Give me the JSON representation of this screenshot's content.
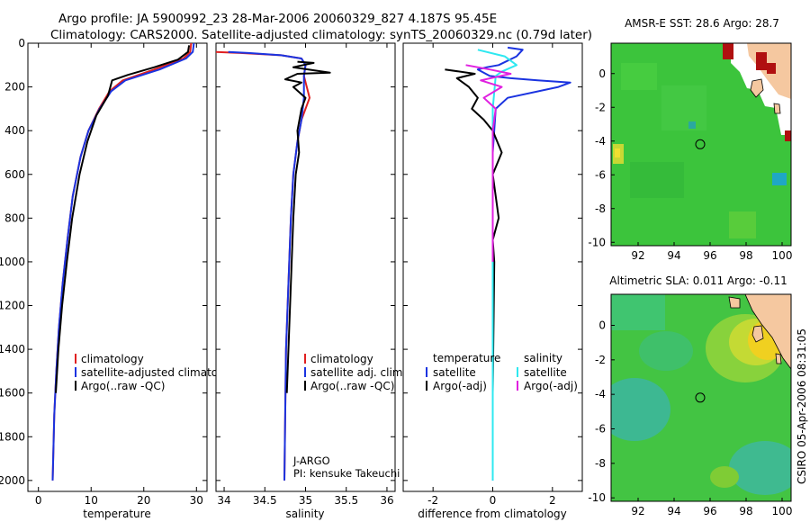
{
  "title_line1": "Argo profile: JA 5900992_23 28-Mar-2006 20060329_827 4.187S 95.45E",
  "title_line2": "Climatology: CARS2000. Satellite-adjusted climatology: synTS_20060329.nc (0.79d later)",
  "side_label": "CSIRO 05-Apr-2006 08:31:05",
  "colors": {
    "climatology": "#e02020",
    "satellite": "#1a33e0",
    "argo": "#000000",
    "sat_sal": "#2ee8f0",
    "argo_sal": "#e020e0"
  },
  "chart_data": [
    {
      "type": "line",
      "id": "temperature",
      "xlabel": "temperature",
      "xlim": [
        -2,
        32
      ],
      "ylim": [
        0,
        2050
      ],
      "y_reversed": true,
      "x_ticks": [
        {
          "v": 0,
          "label": "0"
        },
        {
          "v": 10,
          "label": "10"
        },
        {
          "v": 20,
          "label": "20"
        },
        {
          "v": 30,
          "label": "30"
        }
      ],
      "y_ticks": [
        {
          "v": 0,
          "label": "0"
        },
        {
          "v": 200,
          "label": "200"
        },
        {
          "v": 400,
          "label": "400"
        },
        {
          "v": 600,
          "label": "600"
        },
        {
          "v": 800,
          "label": "800"
        },
        {
          "v": 1000,
          "label": "1000"
        },
        {
          "v": 1200,
          "label": "1200"
        },
        {
          "v": 1400,
          "label": "1400"
        },
        {
          "v": 1600,
          "label": "1600"
        },
        {
          "v": 1800,
          "label": "1800"
        },
        {
          "v": 2000,
          "label": "2000"
        }
      ],
      "legend": [
        {
          "label": "climatology",
          "color": "#e02020"
        },
        {
          "label": "satellite-adjusted climatology",
          "color": "#1a33e0"
        },
        {
          "label": "Argo(..raw -QC)",
          "color": "#000000"
        }
      ],
      "series": [
        {
          "name": "climatology",
          "color": "#e02020",
          "x": [
            29.0,
            28.8,
            27.5,
            22.0,
            16.0,
            13.5,
            11.5,
            9.5,
            8.0,
            6.5,
            5.5,
            4.6,
            3.9,
            3.4,
            3.0,
            2.7
          ],
          "y": [
            0,
            40,
            70,
            120,
            170,
            220,
            300,
            400,
            520,
            700,
            900,
            1100,
            1300,
            1500,
            1700,
            2000
          ]
        },
        {
          "name": "satellite-adjusted climatology",
          "color": "#1a33e0",
          "x": [
            29.5,
            29.3,
            28.0,
            23.0,
            16.5,
            13.8,
            11.6,
            9.5,
            8.0,
            6.5,
            5.5,
            4.6,
            3.9,
            3.4,
            3.0,
            2.7
          ],
          "y": [
            0,
            40,
            70,
            120,
            170,
            220,
            300,
            400,
            520,
            700,
            900,
            1100,
            1300,
            1500,
            1700,
            2000
          ]
        },
        {
          "name": "Argo(..raw -QC)",
          "color": "#000000",
          "x": [
            28.6,
            28.4,
            26.5,
            22.0,
            17.0,
            14.0,
            13.2,
            11.0,
            9.3,
            7.8,
            6.4,
            5.4,
            4.5,
            3.8,
            3.3
          ],
          "y": [
            10,
            40,
            75,
            110,
            145,
            170,
            240,
            330,
            450,
            600,
            800,
            1000,
            1200,
            1400,
            1600
          ]
        }
      ]
    },
    {
      "type": "line",
      "id": "salinity",
      "xlabel": "salinity",
      "xlim": [
        33.9,
        36.1
      ],
      "ylim": [
        0,
        2050
      ],
      "y_reversed": true,
      "x_ticks": [
        {
          "v": 34,
          "label": "34"
        },
        {
          "v": 34.5,
          "label": "34.5"
        },
        {
          "v": 35,
          "label": "35"
        },
        {
          "v": 35.5,
          "label": "35.5"
        },
        {
          "v": 36,
          "label": "36"
        }
      ],
      "legend": [
        {
          "label": "climatology",
          "color": "#e02020"
        },
        {
          "label": "satellite adj. clim.",
          "color": "#1a33e0"
        },
        {
          "label": "Argo(..raw -QC)",
          "color": "#000000"
        }
      ],
      "annotation": [
        "J-ARGO",
        "PI: kensuke Takeuchi"
      ],
      "series": [
        {
          "name": "climatology",
          "color": "#e02020",
          "x": [
            33.9,
            34.2,
            34.7,
            34.95,
            35.0,
            34.98,
            35.05,
            34.95,
            34.9,
            34.85,
            34.82,
            34.8,
            34.78,
            34.76,
            34.75,
            34.74
          ],
          "y": [
            40,
            45,
            55,
            70,
            100,
            150,
            250,
            350,
            450,
            600,
            800,
            1000,
            1200,
            1400,
            1700,
            2000
          ]
        },
        {
          "name": "satellite adj. clim.",
          "color": "#1a33e0",
          "x": [
            34.05,
            34.3,
            34.7,
            34.95,
            35.0,
            34.98,
            34.98,
            34.95,
            34.9,
            34.85,
            34.82,
            34.8,
            34.78,
            34.76,
            34.75,
            34.74
          ],
          "y": [
            40,
            45,
            55,
            70,
            100,
            150,
            250,
            350,
            450,
            600,
            800,
            1000,
            1200,
            1400,
            1700,
            2000
          ]
        },
        {
          "name": "Argo(..raw -QC)",
          "color": "#000000",
          "x": [
            34.9,
            35.1,
            34.85,
            35.3,
            34.9,
            34.75,
            34.95,
            34.85,
            35.0,
            34.95,
            34.9,
            34.92,
            34.88,
            34.85,
            34.83,
            34.81,
            34.79,
            34.77
          ],
          "y": [
            85,
            90,
            110,
            135,
            140,
            165,
            180,
            200,
            250,
            300,
            400,
            500,
            600,
            800,
            1000,
            1200,
            1400,
            1600
          ]
        }
      ]
    },
    {
      "type": "line",
      "id": "difference",
      "xlabel": "difference from climatology",
      "xlim": [
        -3,
        3
      ],
      "ylim": [
        0,
        2050
      ],
      "y_reversed": true,
      "x_ticks": [
        {
          "v": -2,
          "label": "-2"
        },
        {
          "v": 0,
          "label": "0"
        },
        {
          "v": 2,
          "label": "2"
        }
      ],
      "legend_left": {
        "heading": "temperature",
        "items": [
          {
            "label": "satellite",
            "color": "#1a33e0"
          },
          {
            "label": "Argo(-adj)",
            "color": "#000000"
          }
        ]
      },
      "legend_right": {
        "heading": "salinity",
        "items": [
          {
            "label": "satellite",
            "color": "#2ee8f0"
          },
          {
            "label": "Argo(-adj)",
            "color": "#e020e0"
          }
        ]
      },
      "series": [
        {
          "name": "temperature satellite",
          "color": "#1a33e0",
          "x": [
            0.5,
            1.0,
            0.8,
            0.2,
            -0.2,
            -0.5,
            -0.1,
            0.6,
            1.5,
            2.6,
            2.2,
            0.5,
            0.1,
            0.0,
            0.0
          ],
          "y": [
            20,
            30,
            60,
            100,
            110,
            120,
            150,
            160,
            170,
            180,
            200,
            250,
            300,
            500,
            2000
          ]
        },
        {
          "name": "temperature Argo(-adj)",
          "color": "#000000",
          "x": [
            -1.6,
            -0.6,
            -1.2,
            -0.8,
            -0.5,
            -0.7,
            -0.3,
            0.0,
            0.3,
            0.0,
            0.2,
            0.0,
            0.05,
            0.0
          ],
          "y": [
            120,
            140,
            160,
            200,
            250,
            300,
            350,
            400,
            500,
            600,
            800,
            900,
            1000,
            1600
          ]
        },
        {
          "name": "salinity satellite",
          "color": "#2ee8f0",
          "x": [
            -0.5,
            0.4,
            0.8,
            0.3,
            0.1,
            0.0,
            0.0,
            0.0
          ],
          "y": [
            30,
            60,
            100,
            130,
            150,
            300,
            500,
            2000
          ]
        },
        {
          "name": "salinity Argo(-adj)",
          "color": "#e020e0",
          "x": [
            -0.9,
            -0.1,
            0.6,
            -0.4,
            0.3,
            -0.3,
            0.1,
            0.0,
            0.0
          ],
          "y": [
            100,
            120,
            140,
            170,
            200,
            250,
            300,
            400,
            1000
          ]
        }
      ]
    },
    {
      "type": "heatmap",
      "id": "sst_map",
      "title": "AMSR-E SST: 28.6  Argo: 28.7",
      "xlim": [
        90.5,
        100.5
      ],
      "ylim": [
        -10.2,
        1.8
      ],
      "x_ticks": [
        {
          "v": 92,
          "label": "92"
        },
        {
          "v": 94,
          "label": "94"
        },
        {
          "v": 96,
          "label": "96"
        },
        {
          "v": 98,
          "label": "98"
        },
        {
          "v": 100,
          "label": "100"
        }
      ],
      "y_ticks": [
        {
          "v": 0,
          "label": "0"
        },
        {
          "v": -2,
          "label": "-2"
        },
        {
          "v": -4,
          "label": "-4"
        },
        {
          "v": -6,
          "label": "-6"
        },
        {
          "v": -8,
          "label": "-8"
        },
        {
          "v": -10,
          "label": "-10"
        }
      ],
      "marker": {
        "lon": 95.45,
        "lat": -4.187
      }
    },
    {
      "type": "heatmap",
      "id": "sla_map",
      "title": "Altimetric SLA: 0.011  Argo: -0.11",
      "xlim": [
        90.5,
        100.5
      ],
      "ylim": [
        -10.2,
        1.8
      ],
      "x_ticks": [
        {
          "v": 92,
          "label": "92"
        },
        {
          "v": 94,
          "label": "94"
        },
        {
          "v": 96,
          "label": "96"
        },
        {
          "v": 98,
          "label": "98"
        },
        {
          "v": 100,
          "label": "100"
        }
      ],
      "y_ticks": [
        {
          "v": 0,
          "label": "0"
        },
        {
          "v": -2,
          "label": "-2"
        },
        {
          "v": -4,
          "label": "-4"
        },
        {
          "v": -6,
          "label": "-6"
        },
        {
          "v": -8,
          "label": "-8"
        },
        {
          "v": -10,
          "label": "-10"
        }
      ],
      "marker": {
        "lon": 95.45,
        "lat": -4.187
      }
    }
  ]
}
